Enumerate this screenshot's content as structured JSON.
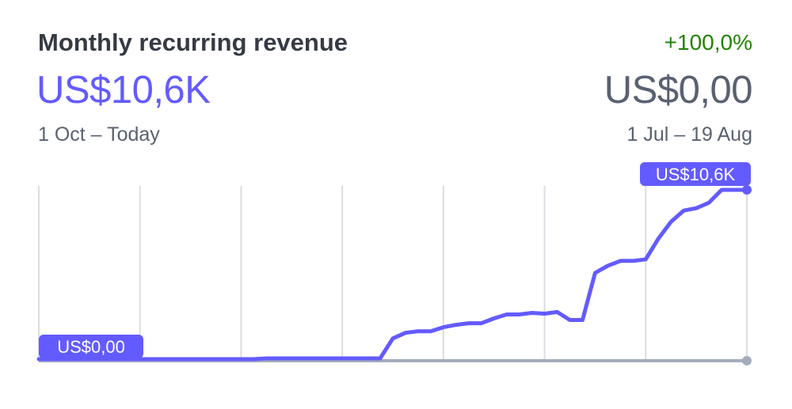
{
  "header": {
    "title": "Monthly recurring revenue",
    "change": "+100,0%",
    "current_value": "US$10,6K",
    "previous_value": "US$0,00",
    "current_range": "1 Oct – Today",
    "previous_range": "1 Jul – 19 Aug"
  },
  "colors": {
    "accent": "#635bff",
    "positive": "#228403",
    "muted_text": "#596171",
    "title_text": "#353a44",
    "grid": "#d8dee4",
    "baseline": "#a3acba"
  },
  "chart_data": {
    "type": "line",
    "title": "Monthly recurring revenue",
    "xlabel": "",
    "ylabel": "",
    "y_unit": "US$",
    "ylim": [
      0,
      10600
    ],
    "grid": "vertical",
    "legend": "none",
    "series": [
      {
        "name": "",
        "values": [
          0,
          0,
          0,
          0,
          0,
          0,
          0,
          0,
          0,
          0,
          0,
          0,
          0,
          0,
          0,
          0,
          0,
          0,
          50,
          50,
          50,
          50,
          50,
          50,
          50,
          50,
          50,
          50,
          1300,
          1650,
          1750,
          1750,
          2000,
          2150,
          2250,
          2250,
          2550,
          2800,
          2800,
          2900,
          2850,
          2950,
          2450,
          2450,
          5400,
          5850,
          6150,
          6150,
          6250,
          7550,
          8600,
          9300,
          9450,
          9800,
          10600,
          10600,
          10600
        ]
      },
      {
        "name": "",
        "values": [
          0,
          0
        ]
      }
    ],
    "annotations": [
      {
        "text": "US$0,00",
        "anchor": "start"
      },
      {
        "text": "US$10,6K",
        "anchor": "end"
      }
    ]
  }
}
